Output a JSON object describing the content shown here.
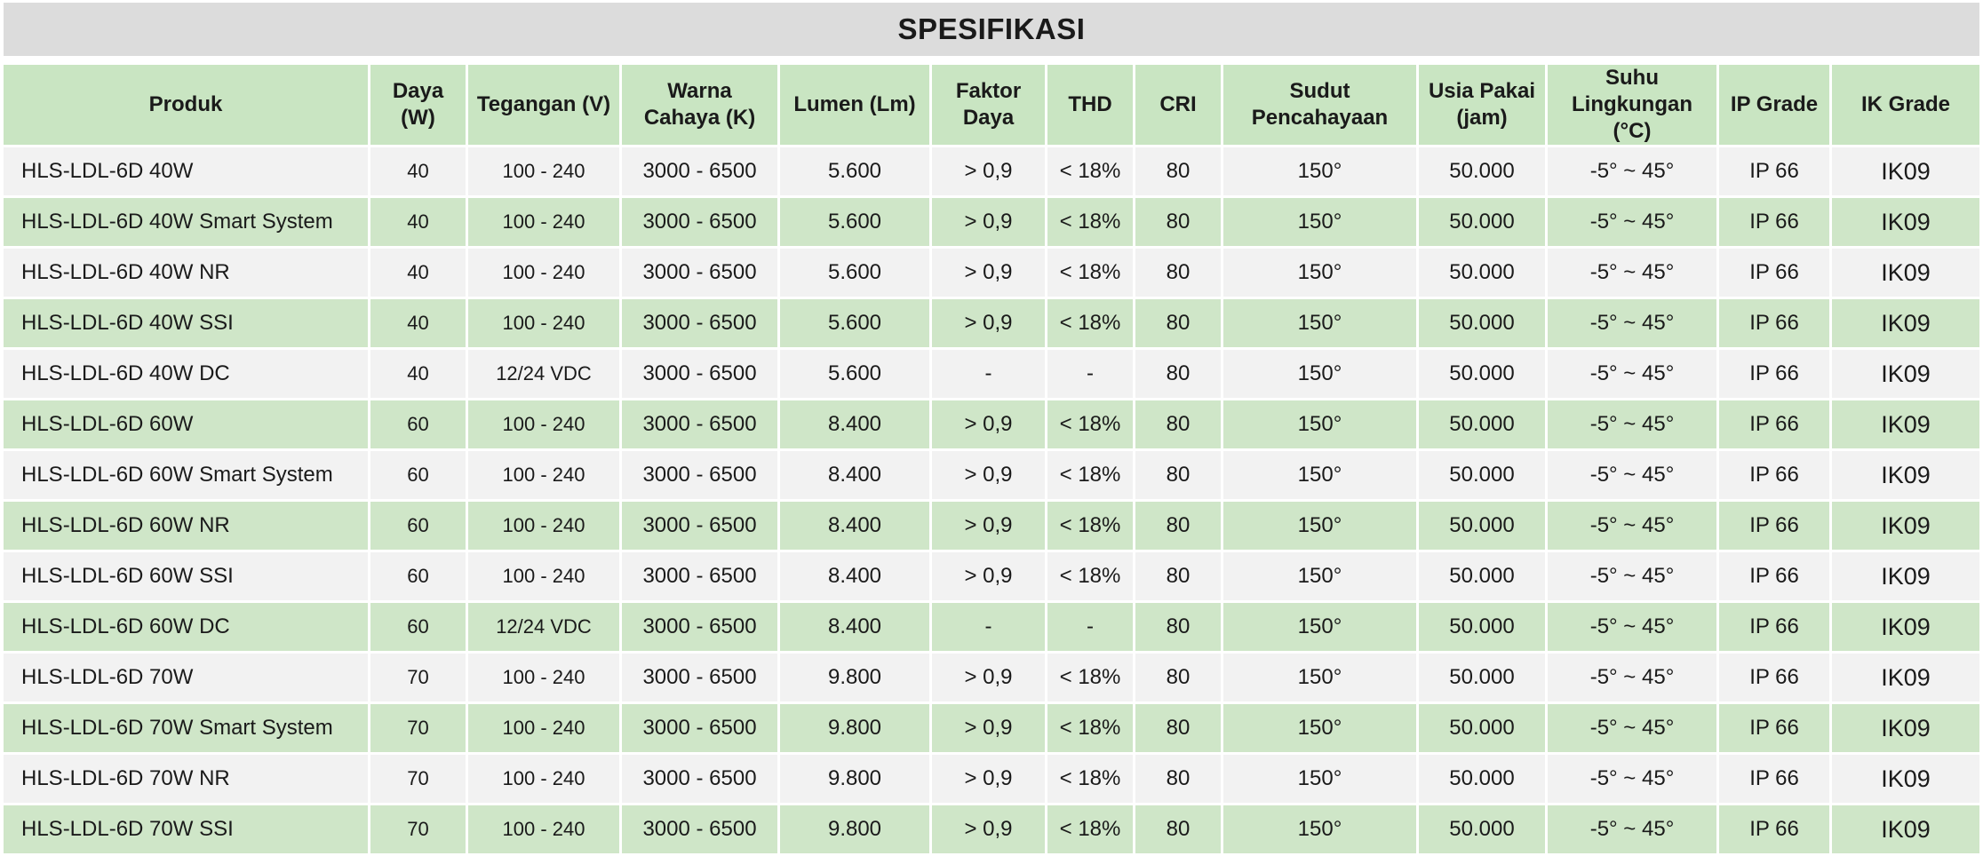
{
  "title": "SPESIFIKASI",
  "headers": [
    [
      "Produk"
    ],
    [
      "Daya (W)"
    ],
    [
      "Tegangan (V)"
    ],
    [
      "Warna",
      "Cahaya (K)"
    ],
    [
      "Lumen (Lm)"
    ],
    [
      "Faktor",
      "Daya"
    ],
    [
      "THD"
    ],
    [
      "CRI"
    ],
    [
      "Sudut",
      "Pencahayaan"
    ],
    [
      "Usia Pakai",
      "(jam)"
    ],
    [
      "Suhu",
      "Lingkungan (°C)"
    ],
    [
      "IP Grade"
    ],
    [
      "IK Grade"
    ]
  ],
  "rows": [
    [
      "HLS-LDL-6D 40W",
      "40",
      "100 - 240",
      "3000 - 6500",
      "5.600",
      "> 0,9",
      "< 18%",
      "80",
      "150°",
      "50.000",
      "-5° ~  45°",
      "IP 66",
      "IK09"
    ],
    [
      "HLS-LDL-6D 40W Smart System",
      "40",
      "100 - 240",
      "3000 - 6500",
      "5.600",
      "> 0,9",
      "< 18%",
      "80",
      "150°",
      "50.000",
      "-5° ~  45°",
      "IP 66",
      "IK09"
    ],
    [
      "HLS-LDL-6D 40W NR",
      "40",
      "100 - 240",
      "3000 - 6500",
      "5.600",
      "> 0,9",
      "< 18%",
      "80",
      "150°",
      "50.000",
      "-5° ~  45°",
      "IP 66",
      "IK09"
    ],
    [
      "HLS-LDL-6D 40W SSI",
      "40",
      "100 - 240",
      "3000 - 6500",
      "5.600",
      "> 0,9",
      "< 18%",
      "80",
      "150°",
      "50.000",
      "-5° ~  45°",
      "IP 66",
      "IK09"
    ],
    [
      "HLS-LDL-6D 40W DC",
      "40",
      "12/24 VDC",
      "3000 - 6500",
      "5.600",
      "-",
      "-",
      "80",
      "150°",
      "50.000",
      "-5° ~  45°",
      "IP 66",
      "IK09"
    ],
    [
      "HLS-LDL-6D 60W",
      "60",
      "100 - 240",
      "3000 - 6500",
      "8.400",
      "> 0,9",
      "< 18%",
      "80",
      "150°",
      "50.000",
      "-5° ~  45°",
      "IP 66",
      "IK09"
    ],
    [
      "HLS-LDL-6D 60W Smart System",
      "60",
      "100 - 240",
      "3000 - 6500",
      "8.400",
      "> 0,9",
      "< 18%",
      "80",
      "150°",
      "50.000",
      "-5° ~  45°",
      "IP 66",
      "IK09"
    ],
    [
      "HLS-LDL-6D 60W NR",
      "60",
      "100 - 240",
      "3000 - 6500",
      "8.400",
      "> 0,9",
      "< 18%",
      "80",
      "150°",
      "50.000",
      "-5° ~  45°",
      "IP 66",
      "IK09"
    ],
    [
      "HLS-LDL-6D 60W SSI",
      "60",
      "100 - 240",
      "3000 - 6500",
      "8.400",
      "> 0,9",
      "< 18%",
      "80",
      "150°",
      "50.000",
      "-5° ~  45°",
      "IP 66",
      "IK09"
    ],
    [
      "HLS-LDL-6D 60W DC",
      "60",
      "12/24 VDC",
      "3000 - 6500",
      "8.400",
      "-",
      "-",
      "80",
      "150°",
      "50.000",
      "-5° ~  45°",
      "IP 66",
      "IK09"
    ],
    [
      "HLS-LDL-6D 70W",
      "70",
      "100 - 240",
      "3000 - 6500",
      "9.800",
      "> 0,9",
      "< 18%",
      "80",
      "150°",
      "50.000",
      "-5° ~  45°",
      "IP 66",
      "IK09"
    ],
    [
      "HLS-LDL-6D 70W Smart System",
      "70",
      "100 - 240",
      "3000 - 6500",
      "9.800",
      "> 0,9",
      "< 18%",
      "80",
      "150°",
      "50.000",
      "-5° ~  45°",
      "IP 66",
      "IK09"
    ],
    [
      "HLS-LDL-6D 70W NR",
      "70",
      "100 - 240",
      "3000 - 6500",
      "9.800",
      "> 0,9",
      "< 18%",
      "80",
      "150°",
      "50.000",
      "-5° ~  45°",
      "IP 66",
      "IK09"
    ],
    [
      "HLS-LDL-6D 70W SSI",
      "70",
      "100 - 240",
      "3000 - 6500",
      "9.800",
      "> 0,9",
      "< 18%",
      "80",
      "150°",
      "50.000",
      "-5° ~  45°",
      "IP 66",
      "IK09"
    ]
  ],
  "colors": {
    "title_bg": "#dcdcdc",
    "header_bg": "#c9e5c2",
    "row_odd": "#f2f2f2",
    "row_even": "#cfe6c8"
  }
}
